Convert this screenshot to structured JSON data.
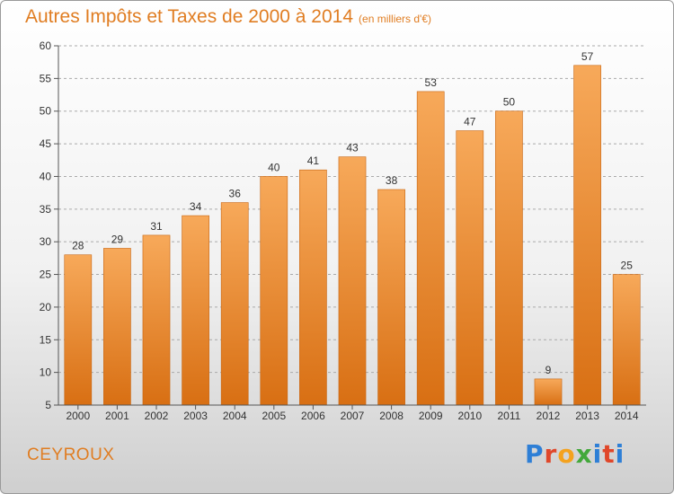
{
  "header": {
    "title": "Autres Impôts et Taxes de 2000 à 2014",
    "unit": "(en milliers d'€)"
  },
  "footer": {
    "commune": "CEYROUX",
    "logo": "Proxiti"
  },
  "colors": {
    "accent": "#e07d22",
    "bar_top": "#f7a95a",
    "bar_bottom": "#d86f13",
    "grid": "#aaaaaa"
  },
  "chart_data": {
    "type": "bar",
    "title": "Autres Impôts et Taxes de 2000 à 2014",
    "xlabel": "",
    "ylabel": "",
    "categories": [
      "2000",
      "2001",
      "2002",
      "2003",
      "2004",
      "2005",
      "2006",
      "2007",
      "2008",
      "2009",
      "2010",
      "2011",
      "2012",
      "2013",
      "2014"
    ],
    "values": [
      28,
      29,
      31,
      34,
      36,
      40,
      41,
      43,
      38,
      53,
      47,
      50,
      9,
      57,
      25
    ],
    "ylim": [
      5,
      60
    ],
    "yticks": [
      5,
      10,
      15,
      20,
      25,
      30,
      35,
      40,
      45,
      50,
      55,
      60
    ],
    "grid": true,
    "data_labels": true
  }
}
